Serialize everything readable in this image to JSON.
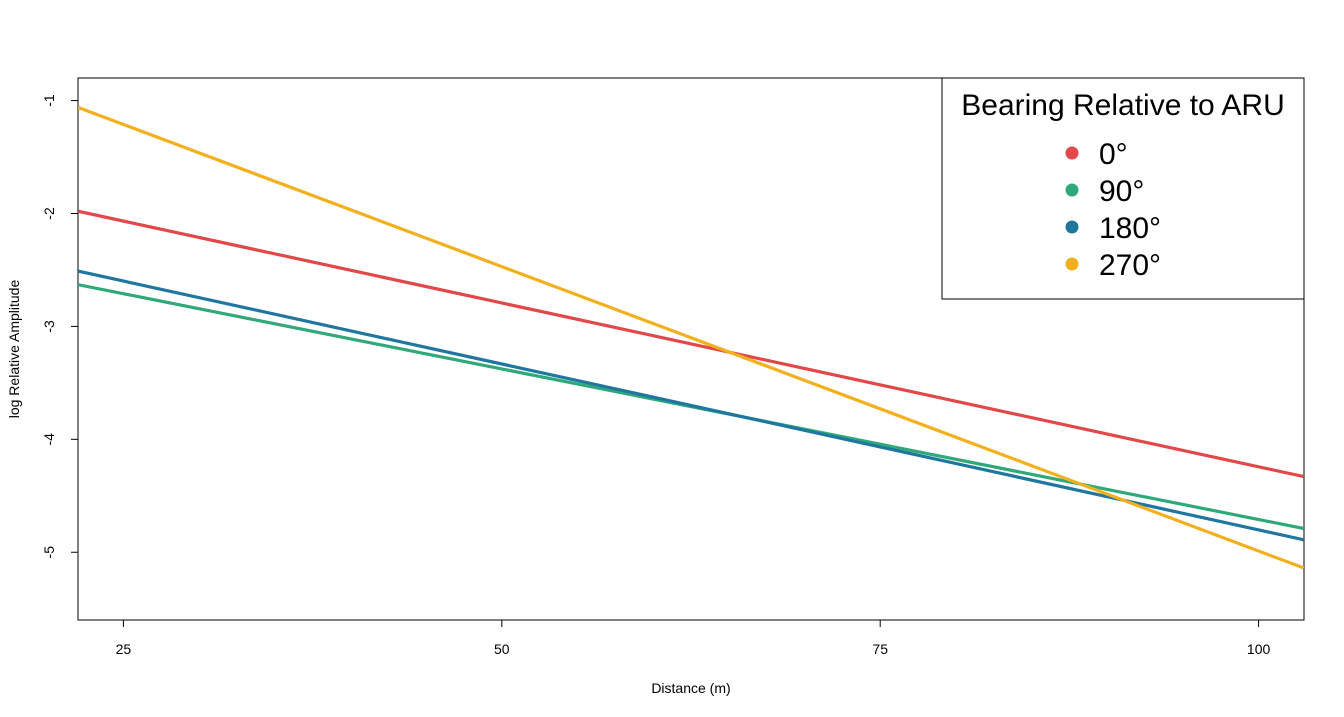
{
  "chart_data": {
    "type": "line",
    "title": "",
    "xlabel": "Distance (m)",
    "ylabel": "log Relative Amplitude",
    "xlim": [
      22,
      103
    ],
    "ylim": [
      -5.6,
      -0.8
    ],
    "x_ticks": [
      25,
      50,
      75,
      100
    ],
    "y_ticks": [
      -1,
      -2,
      -3,
      -4,
      -5
    ],
    "x_tick_labels": [
      "25",
      "50",
      "75",
      "100"
    ],
    "y_tick_labels": [
      "-1",
      "-2",
      "-3",
      "-4",
      "-5"
    ],
    "grid": false,
    "legend": {
      "title": "Bearing Relative to ARU",
      "placement": "top-right"
    },
    "series": [
      {
        "name": "0°",
        "color": "#E2474A",
        "x": [
          22,
          103
        ],
        "y": [
          -1.98,
          -4.33
        ]
      },
      {
        "name": "90°",
        "color": "#2FA97A",
        "x": [
          22,
          103
        ],
        "y": [
          -2.63,
          -4.79
        ]
      },
      {
        "name": "180°",
        "color": "#1F77A0",
        "x": [
          22,
          103
        ],
        "y": [
          -2.51,
          -4.89
        ]
      },
      {
        "name": "270°",
        "color": "#F2B01E",
        "x": [
          22,
          103
        ],
        "y": [
          -1.06,
          -5.14
        ]
      }
    ]
  }
}
